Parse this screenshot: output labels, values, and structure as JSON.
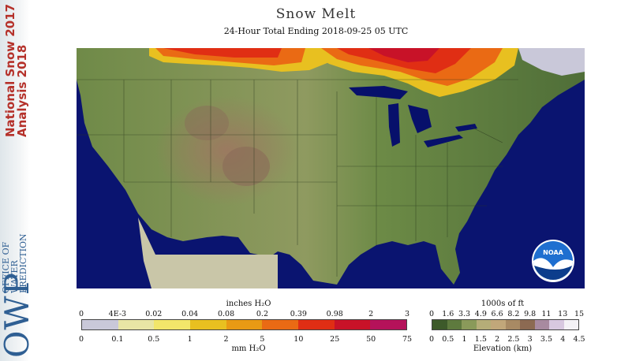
{
  "header": {
    "title": "Snow Melt",
    "subtitle": "24-Hour Total Ending 2018-09-25 05 UTC"
  },
  "sidebar": {
    "product_line1": "National Snow 2017",
    "product_line2": "Analysis 2018",
    "office_line1": "OFFICE OF",
    "office_line2": "WATER",
    "office_line3": "PREDICTION",
    "office_acronym": "OWP"
  },
  "map": {
    "logo_text": "NOAA",
    "colors": {
      "water": "#07106b",
      "land_low": "#5b7a3e",
      "land_high": "#a68c66",
      "outside_domain": "#c9c6a8"
    }
  },
  "melt_legend": {
    "top_label": "inches H₂O",
    "bottom_label": "mm H₂O",
    "inch_ticks": [
      "0",
      "4E-3",
      "0.02",
      "0.04",
      "0.08",
      "0.2",
      "0.39",
      "0.98",
      "2",
      "3"
    ],
    "mm_ticks": [
      "0",
      "0.1",
      "0.5",
      "1",
      "2",
      "5",
      "10",
      "25",
      "50",
      "75"
    ],
    "colors": [
      "#c9c8d9",
      "#e8e5a5",
      "#f2e66a",
      "#e8c020",
      "#e89a14",
      "#ea6a14",
      "#e02e14",
      "#c81228",
      "#b5125a"
    ]
  },
  "elevation_legend": {
    "top_label": "1000s of ft",
    "bottom_label": "Elevation (km)",
    "ft_ticks": [
      "0",
      "1.6",
      "3.3",
      "4.9",
      "6.6",
      "8.2",
      "9.8",
      "11",
      "13",
      "15"
    ],
    "km_ticks": [
      "0",
      "0.5",
      "1",
      "1.5",
      "2",
      "2.5",
      "3",
      "3.5",
      "4",
      "4.5"
    ],
    "colors": [
      "#3d5a2a",
      "#5e7a3e",
      "#8a9a5a",
      "#b5ad78",
      "#c1a77a",
      "#a88a64",
      "#8c6a52",
      "#a88aa0",
      "#d8c8e0",
      "#f4f2f6"
    ]
  }
}
